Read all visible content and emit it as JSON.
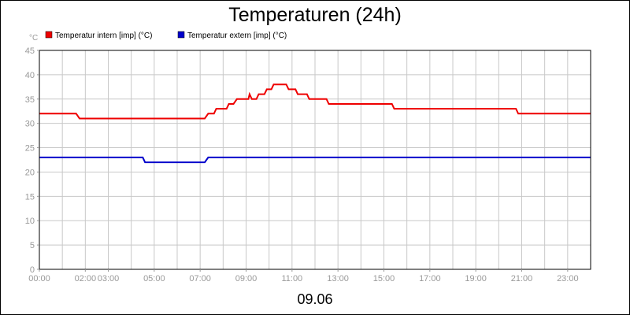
{
  "chart_data": {
    "type": "line",
    "title": "Temperaturen (24h)",
    "yunit": "°C",
    "date_label": "09.06",
    "ylim": [
      0,
      45
    ],
    "yticks": [
      0,
      5,
      10,
      15,
      20,
      25,
      30,
      35,
      40,
      45
    ],
    "xlim_hours": [
      0,
      24
    ],
    "xticks": [
      {
        "h": 0,
        "label": "00:00"
      },
      {
        "h": 2,
        "label": "02:00"
      },
      {
        "h": 3,
        "label": "03:00"
      },
      {
        "h": 5,
        "label": "05:00"
      },
      {
        "h": 7,
        "label": "07:00"
      },
      {
        "h": 9,
        "label": "09:00"
      },
      {
        "h": 11,
        "label": "11:00"
      },
      {
        "h": 13,
        "label": "13:00"
      },
      {
        "h": 15,
        "label": "15:00"
      },
      {
        "h": 17,
        "label": "17:00"
      },
      {
        "h": 19,
        "label": "19:00"
      },
      {
        "h": 21,
        "label": "21:00"
      },
      {
        "h": 23,
        "label": "23:00"
      }
    ],
    "grid": true,
    "legend_position": "top-left",
    "series": [
      {
        "name": "Temperatur intern [imp] (°C)",
        "color": "#ee0000",
        "points": [
          [
            0.0,
            32
          ],
          [
            1.6,
            32
          ],
          [
            1.75,
            31
          ],
          [
            7.2,
            31
          ],
          [
            7.35,
            32
          ],
          [
            7.6,
            32
          ],
          [
            7.7,
            33
          ],
          [
            8.15,
            33
          ],
          [
            8.25,
            34
          ],
          [
            8.45,
            34
          ],
          [
            8.6,
            35
          ],
          [
            9.1,
            35
          ],
          [
            9.15,
            36
          ],
          [
            9.25,
            35
          ],
          [
            9.45,
            35
          ],
          [
            9.55,
            36
          ],
          [
            9.8,
            36
          ],
          [
            9.9,
            37
          ],
          [
            10.1,
            37
          ],
          [
            10.2,
            38
          ],
          [
            10.75,
            38
          ],
          [
            10.85,
            37
          ],
          [
            11.15,
            37
          ],
          [
            11.25,
            36
          ],
          [
            11.65,
            36
          ],
          [
            11.75,
            35
          ],
          [
            12.5,
            35
          ],
          [
            12.6,
            34
          ],
          [
            15.35,
            34
          ],
          [
            15.45,
            33
          ],
          [
            20.75,
            33
          ],
          [
            20.85,
            32
          ],
          [
            24.0,
            32
          ]
        ]
      },
      {
        "name": "Temperatur extern [imp] (°C)",
        "color": "#0000cc",
        "points": [
          [
            0.0,
            23
          ],
          [
            4.5,
            23
          ],
          [
            4.6,
            22
          ],
          [
            7.2,
            22
          ],
          [
            7.35,
            23
          ],
          [
            24.0,
            23
          ]
        ]
      }
    ]
  }
}
